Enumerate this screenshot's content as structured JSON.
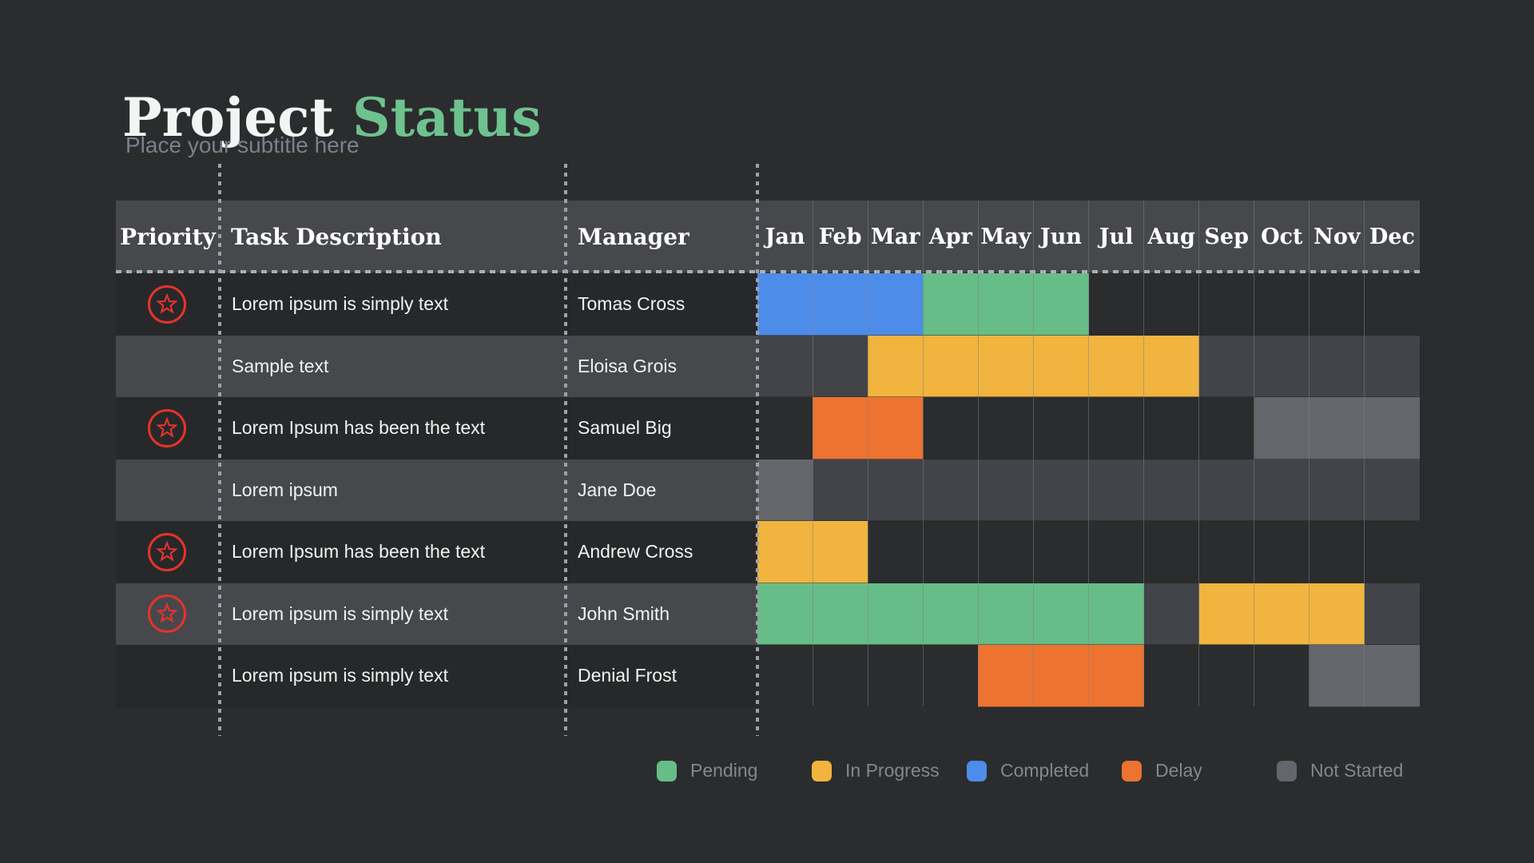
{
  "title": {
    "main": "Project",
    "accent": "Status"
  },
  "subtitle": "Place your subtitle here",
  "colors": {
    "pending": "#66bd87",
    "in_progress": "#f1b43f",
    "completed": "#4e8ce9",
    "delay": "#ec7330",
    "not_started": "#64666c",
    "accent": "#6ec28f",
    "priority": "#e6332a"
  },
  "chart_data": {
    "type": "gantt",
    "columns": {
      "priority": "Priority",
      "task": "Task Description",
      "manager": "Manager"
    },
    "months": [
      "Jan",
      "Feb",
      "Mar",
      "Apr",
      "May",
      "Jun",
      "Jul",
      "Aug",
      "Sep",
      "Oct",
      "Nov",
      "Dec"
    ],
    "rows": [
      {
        "priority": true,
        "task": "Lorem ipsum is simply text",
        "manager": "Tomas Cross",
        "cells": [
          "completed",
          "completed",
          "completed",
          "pending",
          "pending",
          "pending",
          "",
          "",
          "",
          "",
          "",
          ""
        ]
      },
      {
        "priority": false,
        "task": "Sample text",
        "manager": "Eloisa Grois",
        "cells": [
          "",
          "",
          "in_progress",
          "in_progress",
          "in_progress",
          "in_progress",
          "in_progress",
          "in_progress",
          "",
          "",
          "",
          ""
        ]
      },
      {
        "priority": true,
        "task": "Lorem Ipsum has been the text",
        "manager": "Samuel Big",
        "cells": [
          "",
          "delay",
          "delay",
          "",
          "",
          "",
          "",
          "",
          "",
          "not_started",
          "not_started",
          "not_started"
        ]
      },
      {
        "priority": false,
        "task": "Lorem ipsum",
        "manager": "Jane Doe",
        "cells": [
          "not_started",
          "",
          "",
          "",
          "",
          "",
          "",
          "",
          "",
          "",
          "",
          ""
        ]
      },
      {
        "priority": true,
        "task": "Lorem Ipsum has been the text",
        "manager": "Andrew Cross",
        "cells": [
          "in_progress",
          "in_progress",
          "",
          "",
          "",
          "",
          "",
          "",
          "",
          "",
          "",
          ""
        ]
      },
      {
        "priority": true,
        "task": "Lorem ipsum is simply text",
        "manager": "John Smith",
        "cells": [
          "pending",
          "pending",
          "pending",
          "pending",
          "pending",
          "pending",
          "pending",
          "",
          "in_progress",
          "in_progress",
          "in_progress",
          ""
        ]
      },
      {
        "priority": false,
        "task": "Lorem ipsum is simply text",
        "manager": "Denial Frost",
        "cells": [
          "",
          "",
          "",
          "",
          "delay",
          "delay",
          "delay",
          "",
          "",
          "",
          "not_started",
          "not_started"
        ]
      }
    ],
    "legend": [
      {
        "status": "pending",
        "label": "Pending"
      },
      {
        "status": "in_progress",
        "label": "In Progress"
      },
      {
        "status": "completed",
        "label": "Completed"
      },
      {
        "status": "delay",
        "label": "Delay"
      },
      {
        "status": "not_started",
        "label": "Not Started"
      }
    ]
  }
}
